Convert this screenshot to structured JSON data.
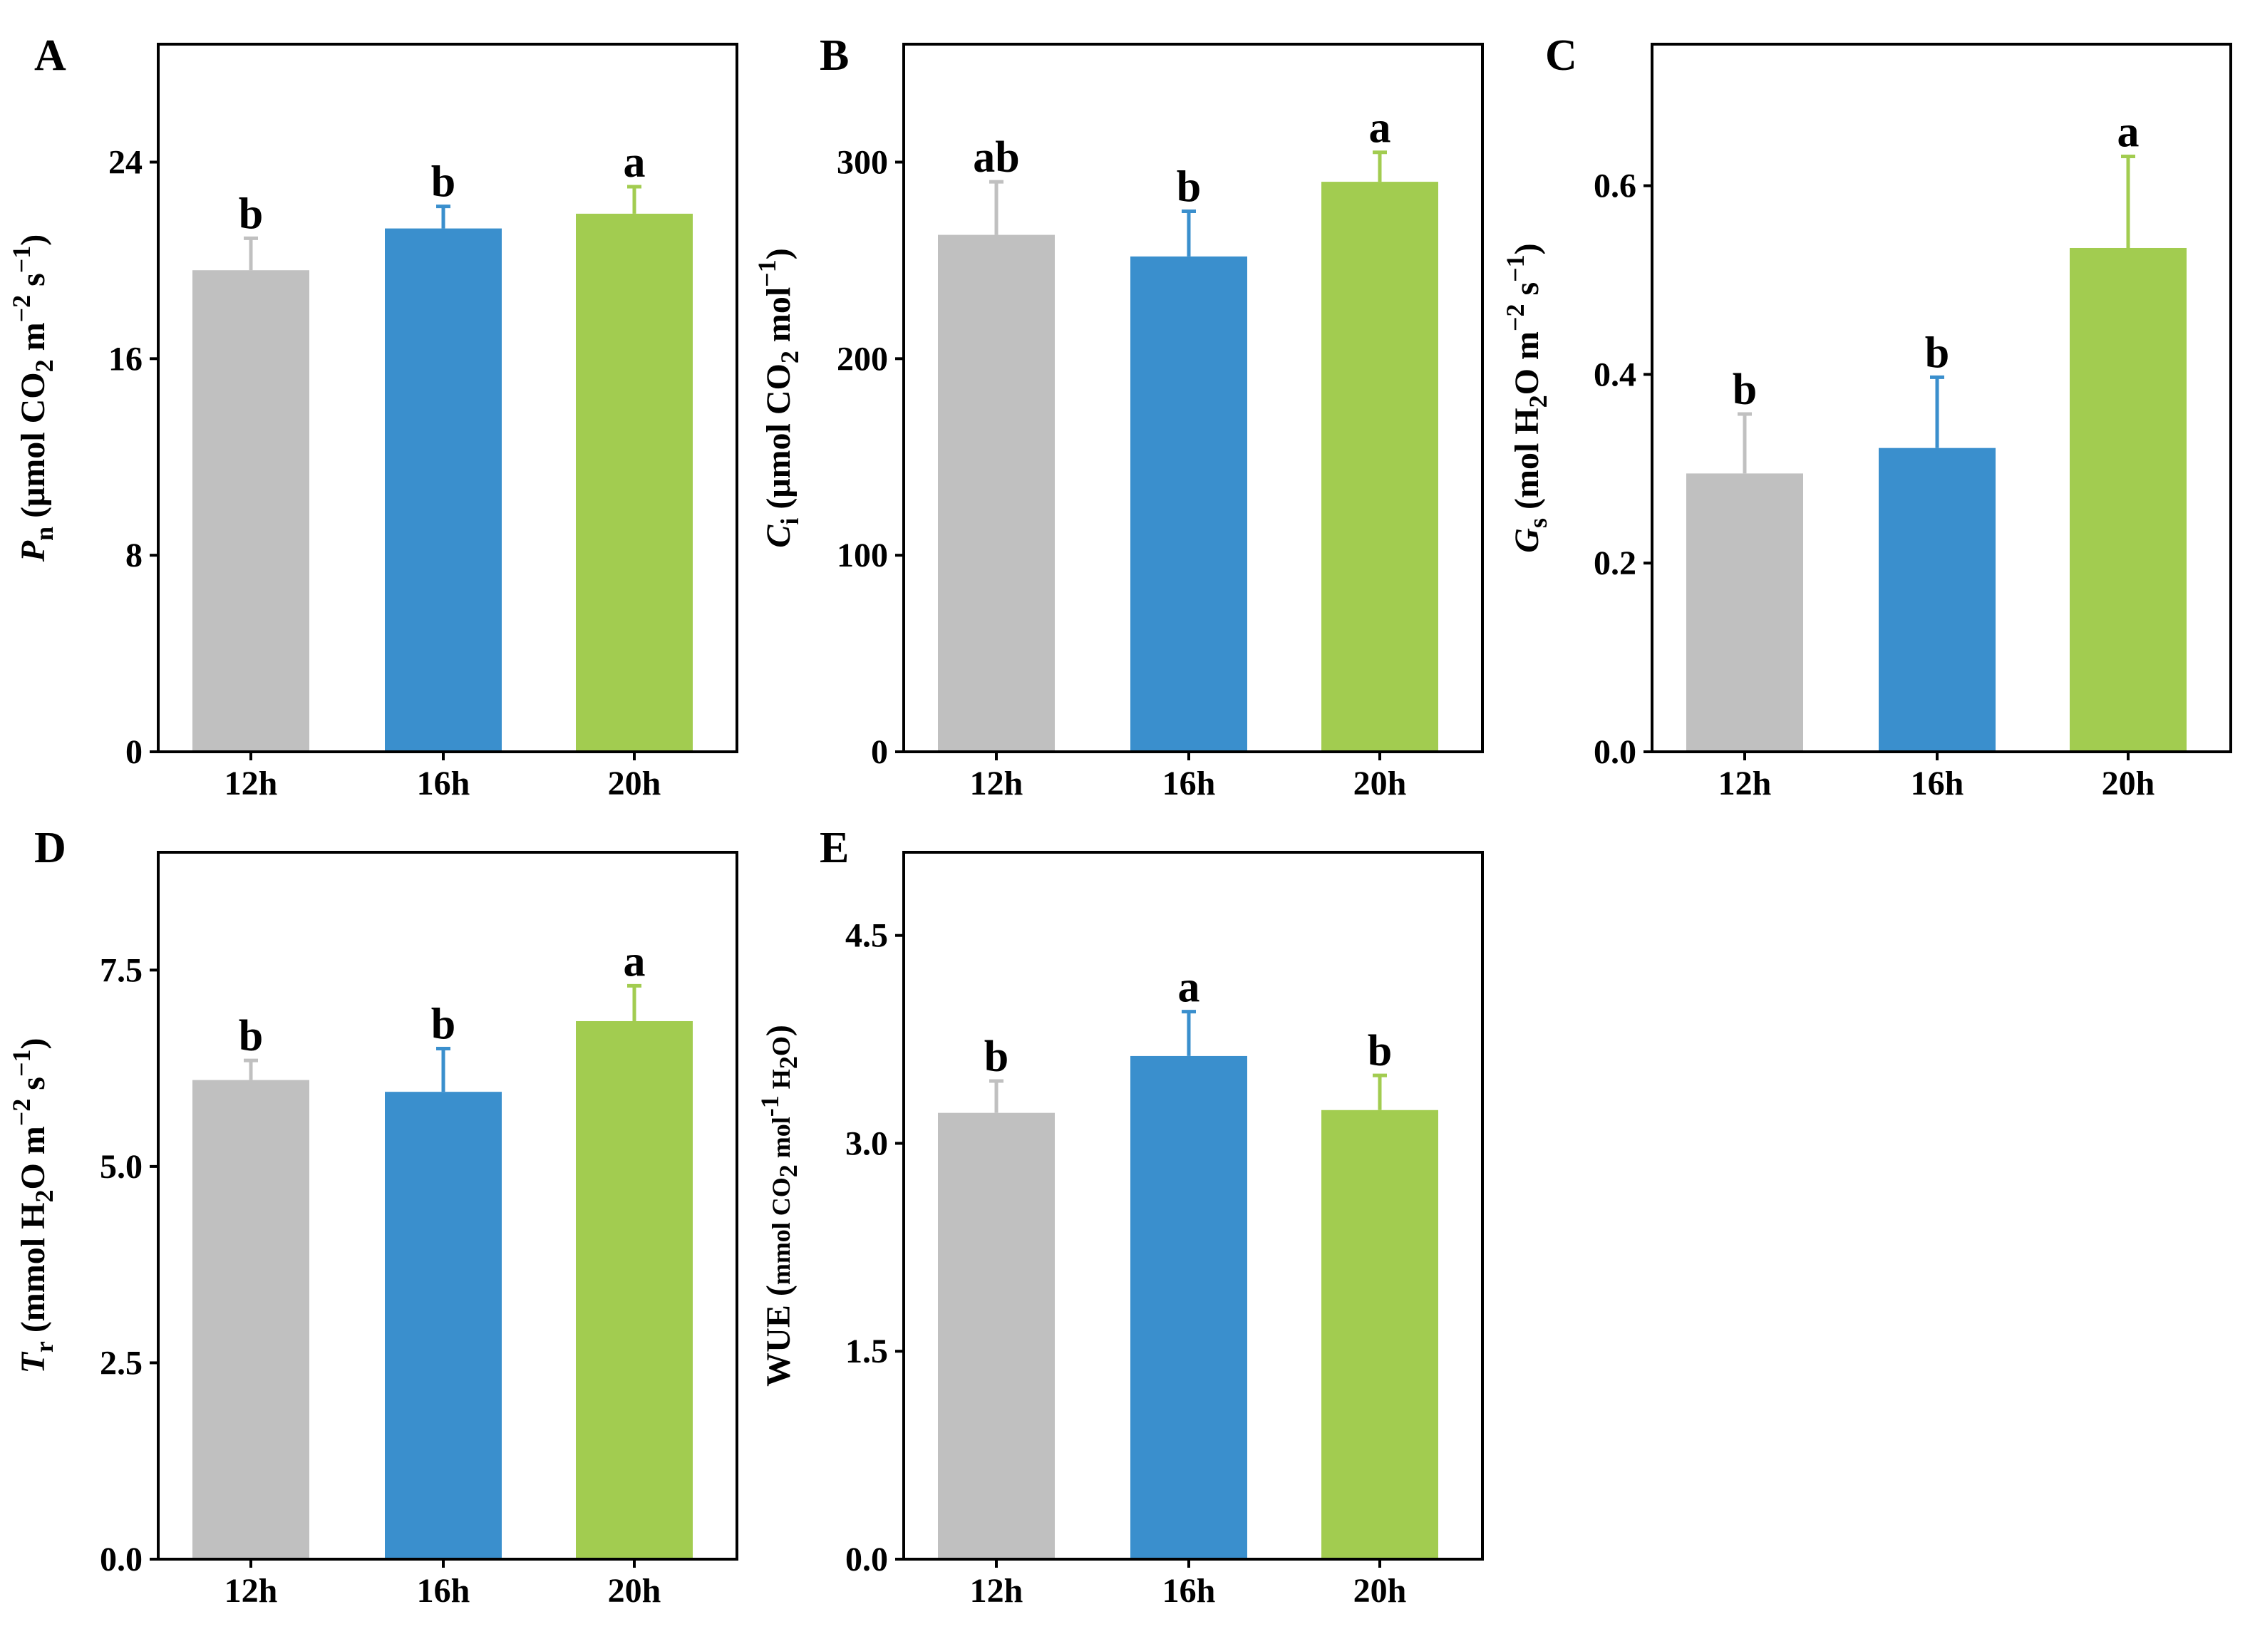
{
  "figure": {
    "panels": [
      "A",
      "B",
      "C",
      "D",
      "E"
    ]
  },
  "chart_data": [
    {
      "panel": "A",
      "type": "bar",
      "categories": [
        "12h",
        "16h",
        "20h"
      ],
      "values": [
        19.6,
        21.3,
        21.9
      ],
      "errors": [
        1.3,
        0.9,
        1.1
      ],
      "significance": [
        "b",
        "b",
        "a"
      ],
      "ylim": [
        0,
        28.8
      ],
      "yticks": [
        "0",
        "8",
        "16",
        "24"
      ],
      "ylabel": {
        "symbol": "P",
        "sub": "n",
        "text": " (μmol CO",
        "sub2": "2",
        "text2": " m",
        "sup": "−2",
        "text3": " s",
        "sup2": "−1",
        "close": ")"
      },
      "colors": [
        "#c0c0c0",
        "#3a8fcd",
        "#a2cc50"
      ]
    },
    {
      "panel": "B",
      "type": "bar",
      "categories": [
        "12h",
        "16h",
        "20h"
      ],
      "values": [
        263,
        252,
        290
      ],
      "errors": [
        27,
        23,
        15
      ],
      "significance": [
        "ab",
        "b",
        "a"
      ],
      "ylim": [
        0,
        360
      ],
      "yticks": [
        "0",
        "100",
        "200",
        "300"
      ],
      "ylabel": {
        "symbol": "C",
        "sub": "i",
        "text": " (μmol CO",
        "sub2": "2",
        "text2": " mol",
        "sup": "−1",
        "close": ")"
      },
      "colors": [
        "#c0c0c0",
        "#3a8fcd",
        "#a2cc50"
      ]
    },
    {
      "panel": "C",
      "type": "bar",
      "categories": [
        "12h",
        "16h",
        "20h"
      ],
      "values": [
        0.295,
        0.322,
        0.534
      ],
      "errors": [
        0.063,
        0.075,
        0.097
      ],
      "significance": [
        "b",
        "b",
        "a"
      ],
      "ylim": [
        0,
        0.75
      ],
      "yticks": [
        "0.0",
        "0.2",
        "0.4",
        "0.6"
      ],
      "ylabel": {
        "symbol": "G",
        "sub": "s",
        "text": " (mol H",
        "sub2": "2",
        "text2": "O  m",
        "sup": "−2",
        "text3": " s",
        "sup2": "−1",
        "close": ")"
      },
      "colors": [
        "#c0c0c0",
        "#3a8fcd",
        "#a2cc50"
      ]
    },
    {
      "panel": "D",
      "type": "bar",
      "categories": [
        "12h",
        "16h",
        "20h"
      ],
      "values": [
        6.1,
        5.95,
        6.85
      ],
      "errors": [
        0.25,
        0.55,
        0.45
      ],
      "significance": [
        "b",
        "b",
        "a"
      ],
      "ylim": [
        0,
        9.0
      ],
      "yticks": [
        "0.0",
        "2.5",
        "5.0",
        "7.5"
      ],
      "ylabel": {
        "symbol": "T",
        "sub": "r",
        "text": " (mmol H",
        "sub2": "2",
        "text2": "O  m",
        "sup": "−2",
        "text3": " s",
        "sup2": "−1",
        "close": ")"
      },
      "colors": [
        "#c0c0c0",
        "#3a8fcd",
        "#a2cc50"
      ]
    },
    {
      "panel": "E",
      "type": "bar",
      "categories": [
        "12h",
        "16h",
        "20h"
      ],
      "values": [
        3.22,
        3.63,
        3.24
      ],
      "errors": [
        0.23,
        0.32,
        0.25
      ],
      "significance": [
        "b",
        "a",
        "b"
      ],
      "ylim": [
        0,
        5.1
      ],
      "yticks": [
        "0.0",
        "1.5",
        "3.0",
        "4.5"
      ],
      "ylabel": {
        "text": "WUE (",
        "small": "mmol CO",
        "sub": "2",
        "small2": " mol",
        "sup": "-1",
        "small3": " H",
        "sub2": "2",
        "small4": "O",
        "close": ")"
      },
      "colors": [
        "#c0c0c0",
        "#3a8fcd",
        "#a2cc50"
      ]
    }
  ]
}
